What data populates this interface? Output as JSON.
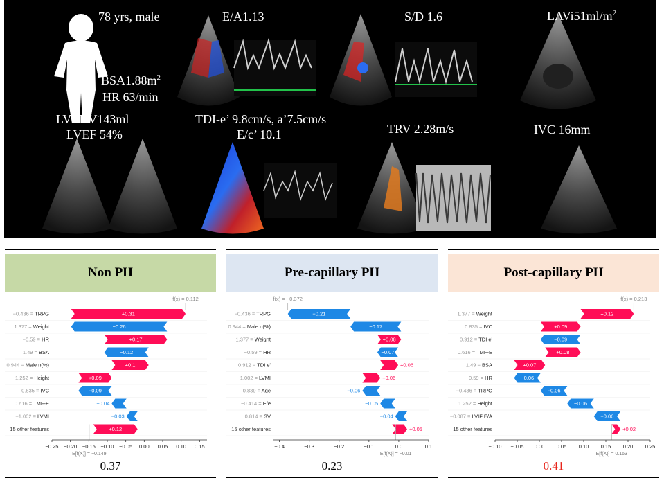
{
  "echo": {
    "patient": "78 yrs, male",
    "bsa": "BSA1.88m",
    "bsa_sup": "2",
    "hr": "HR 63/min",
    "ea": "E/A1.13",
    "sd": "S/D 1.6",
    "lavi": "LAVi51ml/m",
    "lavi_sup": "2",
    "lvedv": "LVEDV143ml",
    "lvef": "LVEF 54%",
    "tdi": "TDI-e’ 9.8cm/s, a’7.5cm/s",
    "ee": "E/c’ 10.1",
    "trv": "TRV 2.28m/s",
    "ivc": "IVC 16mm"
  },
  "colors": {
    "positive": "#ff0d57",
    "negative": "#1e88e5",
    "post_prob": "#e8251b"
  },
  "panels": [
    {
      "title": "Non PH",
      "header_color": "#c6d9a6",
      "probability": "0.37",
      "chart_data": {
        "type": "waterfall",
        "fx_label": "f(x) = 0.112",
        "efx_label": "E[f(X)] = −0.149",
        "base_value": -0.149,
        "final_value": 0.112,
        "xlim": [
          -0.25,
          0.17
        ],
        "ticks": [
          -0.25,
          -0.2,
          -0.15,
          -0.1,
          -0.05,
          0.0,
          0.05,
          0.1,
          0.15
        ],
        "tick_labels": [
          "−0.25",
          "−0.20",
          "−0.15",
          "−0.10",
          "−0.05",
          "0.00",
          "0.05",
          "0.10",
          "0.15"
        ],
        "rows": [
          {
            "feature": "−0.436 = TRPG",
            "value": 0.31,
            "label": "+0.31"
          },
          {
            "feature": "1.377 = Weight",
            "value": -0.26,
            "label": "−0.26"
          },
          {
            "feature": "−0.59 = HR",
            "value": 0.17,
            "label": "+0.17"
          },
          {
            "feature": "1.49 = BSA",
            "value": -0.12,
            "label": "−0.12"
          },
          {
            "feature": "0.944 = Male n(%)",
            "value": 0.1,
            "label": "+0.1"
          },
          {
            "feature": "1.252 = Height",
            "value": 0.09,
            "label": "+0.09"
          },
          {
            "feature": "0.835 = IVC",
            "value": -0.09,
            "label": "−0.09"
          },
          {
            "feature": "0.616 = TMF-E",
            "value": -0.04,
            "label": "−0.04"
          },
          {
            "feature": "−1.002 = LVMI",
            "value": -0.03,
            "label": "−0.03"
          },
          {
            "feature": "15 other features",
            "value": 0.12,
            "label": "+0.12"
          }
        ]
      }
    },
    {
      "title": "Pre-capillary PH",
      "header_color": "#dde6f2",
      "probability": "0.23",
      "chart_data": {
        "type": "waterfall",
        "fx_label": "f(x) = −0.372",
        "efx_label": "E[f(X)] = −0.01",
        "base_value": -0.01,
        "final_value": -0.372,
        "xlim": [
          -0.42,
          0.1
        ],
        "ticks": [
          -0.4,
          -0.3,
          -0.2,
          -0.1,
          0.0,
          0.1
        ],
        "tick_labels": [
          "−0.4",
          "−0.3",
          "−0.2",
          "−0.1",
          "0.0",
          "0.1"
        ],
        "rows": [
          {
            "feature": "−0.436 = TRPG",
            "value": -0.21,
            "label": "−0.21"
          },
          {
            "feature": "0.944 = Male n(%)",
            "value": -0.17,
            "label": "−0.17"
          },
          {
            "feature": "1.377 = Weight",
            "value": 0.08,
            "label": "+0.08"
          },
          {
            "feature": "−0.59 = HR",
            "value": -0.07,
            "label": "−0.07"
          },
          {
            "feature": "0.912 = TDI e'",
            "value": 0.06,
            "label": "+0.06"
          },
          {
            "feature": "−1.002 = LVMI",
            "value": 0.06,
            "label": "+0.06"
          },
          {
            "feature": "0.839 = Age",
            "value": -0.06,
            "label": "−0.06"
          },
          {
            "feature": "−0.414 = E/e",
            "value": -0.05,
            "label": "−0.05"
          },
          {
            "feature": "0.814 = SV",
            "value": -0.04,
            "label": "−0.04"
          },
          {
            "feature": "15 other features",
            "value": 0.05,
            "label": "+0.05"
          }
        ]
      }
    },
    {
      "title": "Post-capillary PH",
      "header_color": "#fbe5d6",
      "probability": "0.41",
      "chart_data": {
        "type": "waterfall",
        "fx_label": "f(x) = 0.213",
        "efx_label": "E[f(X)] = 0.163",
        "base_value": 0.163,
        "final_value": 0.213,
        "xlim": [
          -0.1,
          0.25
        ],
        "ticks": [
          -0.1,
          -0.05,
          0.0,
          0.05,
          0.1,
          0.15,
          0.2,
          0.25
        ],
        "tick_labels": [
          "−0.10",
          "−0.05",
          "0.00",
          "0.05",
          "0.10",
          "0.15",
          "0.20",
          "0.25"
        ],
        "rows": [
          {
            "feature": "1.377 = Weight",
            "value": 0.12,
            "label": "+0.12"
          },
          {
            "feature": "0.835 = IVC",
            "value": 0.09,
            "label": "+0.09"
          },
          {
            "feature": "0.912 = TDI e'",
            "value": -0.09,
            "label": "−0.09"
          },
          {
            "feature": "0.616 = TMF-E",
            "value": 0.08,
            "label": "+0.08"
          },
          {
            "feature": "1.49 = BSA",
            "value": 0.07,
            "label": "+0.07"
          },
          {
            "feature": "−0.59 = HR",
            "value": -0.06,
            "label": "−0.06"
          },
          {
            "feature": "−0.436 = TRPG",
            "value": -0.06,
            "label": "−0.06"
          },
          {
            "feature": "1.252 = Height",
            "value": -0.06,
            "label": "−0.06"
          },
          {
            "feature": "−0.087 = LVIF E/A",
            "value": -0.06,
            "label": "−0.06"
          },
          {
            "feature": "15 other features",
            "value": 0.02,
            "label": "+0.02"
          }
        ]
      }
    }
  ]
}
